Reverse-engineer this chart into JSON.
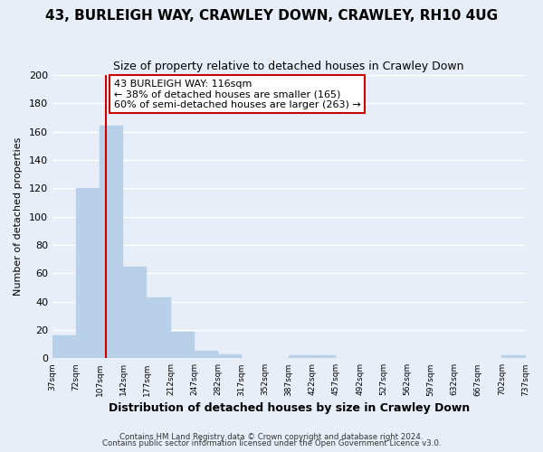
{
  "title": "43, BURLEIGH WAY, CRAWLEY DOWN, CRAWLEY, RH10 4UG",
  "subtitle": "Size of property relative to detached houses in Crawley Down",
  "xlabel": "Distribution of detached houses by size in Crawley Down",
  "ylabel": "Number of detached properties",
  "bar_edges": [
    37,
    72,
    107,
    142,
    177,
    212,
    247,
    282,
    317,
    352,
    387,
    422,
    457,
    492,
    527,
    562,
    597,
    632,
    667,
    702,
    737
  ],
  "bar_heights": [
    16,
    120,
    164,
    65,
    43,
    19,
    5,
    3,
    0,
    0,
    2,
    2,
    0,
    0,
    0,
    0,
    0,
    0,
    0,
    2
  ],
  "bar_color": "#b8d0e8",
  "bar_edgecolor": "#b8d0e8",
  "vline_x": 116,
  "vline_color": "#cc0000",
  "annotation_line1": "43 BURLEIGH WAY: 116sqm",
  "annotation_line2": "← 38% of detached houses are smaller (165)",
  "annotation_line3": "60% of semi-detached houses are larger (263) →",
  "box_edgecolor": "#cc0000",
  "ylim": [
    0,
    200
  ],
  "yticks": [
    0,
    20,
    40,
    60,
    80,
    100,
    120,
    140,
    160,
    180,
    200
  ],
  "xtick_labels": [
    "37sqm",
    "72sqm",
    "107sqm",
    "142sqm",
    "177sqm",
    "212sqm",
    "247sqm",
    "282sqm",
    "317sqm",
    "352sqm",
    "387sqm",
    "422sqm",
    "457sqm",
    "492sqm",
    "527sqm",
    "562sqm",
    "597sqm",
    "632sqm",
    "667sqm",
    "702sqm",
    "737sqm"
  ],
  "footer1": "Contains HM Land Registry data © Crown copyright and database right 2024.",
  "footer2": "Contains public sector information licensed under the Open Government Licence v3.0.",
  "background_color": "#e8eef8",
  "grid_color": "#ffffff",
  "title_fontsize": 11,
  "subtitle_fontsize": 9,
  "xlabel_fontsize": 9,
  "ylabel_fontsize": 8
}
